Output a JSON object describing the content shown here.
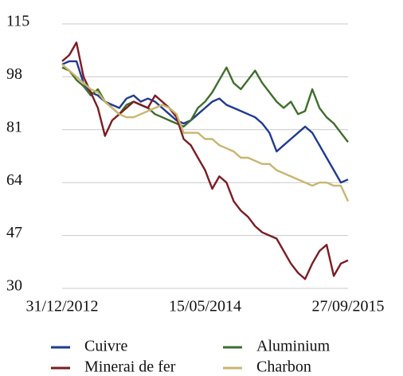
{
  "chart_data": {
    "type": "line",
    "categories": [
      "31/12/2012",
      null,
      null,
      null,
      null,
      null,
      null,
      null,
      null,
      null,
      null,
      null,
      null,
      null,
      null,
      null,
      null,
      null,
      null,
      null,
      "15/05/2014",
      null,
      null,
      null,
      null,
      null,
      null,
      null,
      null,
      null,
      null,
      null,
      null,
      null,
      null,
      null,
      null,
      null,
      null,
      null,
      "27/09/2015"
    ],
    "ylim": [
      30,
      115
    ],
    "yticks": [
      30,
      47,
      64,
      81,
      98,
      115
    ],
    "grid": true,
    "legend": "bottom",
    "series": [
      {
        "name": "Cuivre",
        "color": "#1f3a8f",
        "values": [
          102,
          103,
          103,
          96,
          93,
          92,
          90,
          89,
          88,
          91,
          92,
          90,
          91,
          90,
          88,
          86,
          84,
          83,
          84,
          86,
          88,
          90,
          91,
          89,
          88,
          87,
          86,
          85,
          83,
          80,
          74,
          76,
          78,
          80,
          82,
          80,
          76,
          72,
          68,
          64,
          65
        ]
      },
      {
        "name": "Aluminium",
        "color": "#3f6e2b",
        "values": [
          101,
          100,
          97,
          95,
          92,
          94,
          90,
          88,
          86,
          89,
          90,
          89,
          88,
          86,
          85,
          84,
          83,
          82,
          84,
          88,
          90,
          93,
          97,
          101,
          96,
          94,
          97,
          100,
          96,
          93,
          90,
          88,
          90,
          86,
          87,
          94,
          88,
          85,
          83,
          80,
          77
        ]
      },
      {
        "name": "Minerai de fer",
        "color": "#7b1c22",
        "values": [
          103,
          105,
          109,
          98,
          93,
          88,
          79,
          84,
          86,
          88,
          90,
          89,
          88,
          92,
          90,
          88,
          85,
          78,
          76,
          72,
          68,
          62,
          66,
          64,
          58,
          55,
          53,
          50,
          48,
          47,
          46,
          42,
          38,
          35,
          33,
          38,
          42,
          44,
          34,
          38,
          39
        ]
      },
      {
        "name": "Charbon",
        "color": "#c9b56f",
        "values": [
          102,
          100,
          98,
          96,
          94,
          93,
          90,
          88,
          86,
          85,
          85,
          86,
          87,
          88,
          89,
          88,
          86,
          80,
          80,
          80,
          78,
          78,
          76,
          75,
          74,
          72,
          72,
          71,
          70,
          70,
          68,
          67,
          66,
          65,
          64,
          63,
          64,
          64,
          63,
          63,
          58
        ]
      }
    ]
  }
}
